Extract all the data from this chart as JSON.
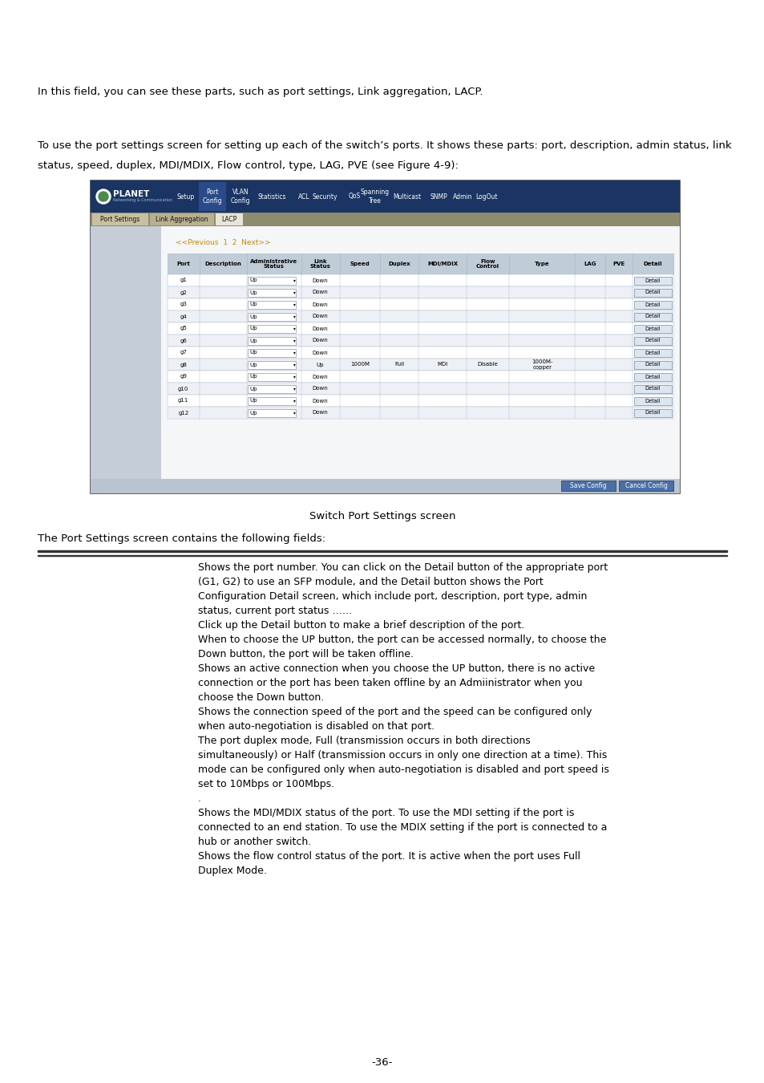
{
  "page_background": "#ffffff",
  "para1": "In this field, you can see these parts, such as port settings, Link aggregation, LACP.",
  "para2_line1": "To use the port settings screen for setting up each of the switch’s ports. It shows these parts: port, description, admin status, link",
  "para2_line2": "status, speed, duplex, MDI/MDIX, Flow control, type, LAG, PVE (see Figure 4-9):",
  "caption": "Switch Port Settings screen",
  "para3": "The Port Settings screen contains the following fields:",
  "table_headers": [
    "Port",
    "Description",
    "Administrative\nStatus",
    "Link\nStatus",
    "Speed",
    "Duplex",
    "MDI/MDIX",
    "Flow\nControl",
    "Type",
    "LAG",
    "PVE",
    "Detail"
  ],
  "table_rows": [
    [
      "g1",
      "",
      "Up",
      "Down",
      "",
      "",
      "",
      "",
      "",
      "",
      "",
      "Detail"
    ],
    [
      "g2",
      "",
      "Up",
      "Down",
      "",
      "",
      "",
      "",
      "",
      "",
      "",
      "Detail"
    ],
    [
      "g3",
      "",
      "Up",
      "Down",
      "",
      "",
      "",
      "",
      "",
      "",
      "",
      "Detail"
    ],
    [
      "g4",
      "",
      "Up",
      "Down",
      "",
      "",
      "",
      "",
      "",
      "",
      "",
      "Detail"
    ],
    [
      "g5",
      "",
      "Up",
      "Down",
      "",
      "",
      "",
      "",
      "",
      "",
      "",
      "Detail"
    ],
    [
      "g6",
      "",
      "Up",
      "Down",
      "",
      "",
      "",
      "",
      "",
      "",
      "",
      "Detail"
    ],
    [
      "g7",
      "",
      "Up",
      "Down",
      "",
      "",
      "",
      "",
      "",
      "",
      "",
      "Detail"
    ],
    [
      "g8",
      "",
      "Up",
      "Up",
      "1000M",
      "Full",
      "MDI",
      "Disable",
      "1000M-\ncopper",
      "",
      "",
      "Detail"
    ],
    [
      "g9",
      "",
      "Up",
      "Down",
      "",
      "",
      "",
      "",
      "",
      "",
      "",
      "Detail"
    ],
    [
      "g10",
      "",
      "Up",
      "Down",
      "",
      "",
      "",
      "",
      "",
      "",
      "",
      "Detail"
    ],
    [
      "g11",
      "",
      "Up",
      "Down",
      "",
      "",
      "",
      "",
      "",
      "",
      "",
      "Detail"
    ],
    [
      "g12",
      "",
      "Up",
      "Down",
      "",
      "",
      "",
      "",
      "",
      "",
      "",
      "Detail"
    ]
  ],
  "footer": "-36-",
  "header_bg": "#1a3563",
  "subheader_bg": "#8e8c6e",
  "screen_bg": "#f0f0f0",
  "screen_border": "#555555",
  "left_panel_bg": "#c5cdd8",
  "table_border": "#aab8c8",
  "detail_btn_bg": "#dce6f0",
  "detail_btn_border": "#7a8fa0",
  "save_btn_bg": "#4a6fa5",
  "save_btn_text": "#ffffff",
  "nav_color": "#cc8800",
  "desc_text": "Shows the port number. You can click on the Detail button of the appropriate port\n(G1, G2) to use an SFP module, and the Detail button shows the Port\nConfiguration Detail screen, which include port, description, port type, admin\nstatus, current port status ……\nClick up the Detail button to make a brief description of the port.\nWhen to choose the UP button, the port can be accessed normally, to choose the\nDown button, the port will be taken offline.\nShows an active connection when you choose the UP button, there is no active\nconnection or the port has been taken offline by an Admiinistrator when you\nchoose the Down button.\nShows the connection speed of the port and the speed can be configured only\nwhen auto-negotiation is disabled on that port.\nThe port duplex mode, Full (transmission occurs in both directions\nsimultaneously) or Half (transmission occurs in only one direction at a time). This\nmode can be configured only when auto-negotiation is disabled and port speed is\nset to 10Mbps or 100Mbps.\n.\nShows the MDI/MDIX status of the port. To use the MDI setting if the port is\nconnected to an end station. To use the MDIX setting if the port is connected to a\nhub or another switch.\nShows the flow control status of the port. It is active when the port uses Full\nDuplex Mode."
}
